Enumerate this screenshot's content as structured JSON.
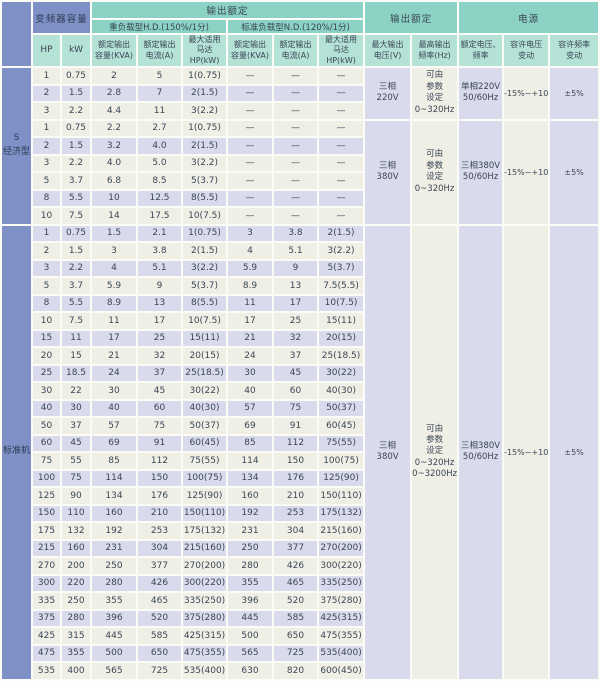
{
  "colors": {
    "teal": "#8BD1C4",
    "mint": "#B5E2D7",
    "blue": "#7E90C5",
    "lavender": "#D9DBEC",
    "cream": "#F0EFE5",
    "text": "#3A4656"
  },
  "header": {
    "inverter_capacity": "变频器容量",
    "output_rating": "输出额定",
    "power": "电源",
    "hd": "重负载型H.D.(150%/1分)",
    "nd": "标准负载型N.D.(120%/1分)",
    "hp": "HP",
    "kw": "kW",
    "kva": "额定输出\n容量(KVA)",
    "amp": "额定输出\n电流(A)",
    "motor": "最大适用\n马达HP(kW)",
    "vmax": "最大输出\n电压(V)",
    "fmax": "最高输出\n频率(Hz)",
    "vf": "额定电压、\n频率",
    "vvar": "容许电压\n变动",
    "fvar": "容许频率\n变动"
  },
  "sections": [
    {
      "id": "economy",
      "label": "S\n经济型",
      "groups": [
        {
          "rows": [
            [
              "1",
              "0.75",
              "2",
              "5",
              "1(0.75)",
              "—",
              "—",
              "—"
            ],
            [
              "2",
              "1.5",
              "2.8",
              "7",
              "2(1.5)",
              "—",
              "—",
              "—"
            ],
            [
              "3",
              "2.2",
              "4.4",
              "11",
              "3(2.2)",
              "—",
              "—",
              "—"
            ]
          ],
          "voltage": "三相\n220V",
          "freq": "可由\n参数\n设定\n0~320Hz",
          "supply": "单相220V\n50/60Hz",
          "volt_var": "-15%~+10%",
          "freq_var": "±5%"
        },
        {
          "rows": [
            [
              "1",
              "0.75",
              "2.2",
              "2.7",
              "1(0.75)",
              "—",
              "—",
              "—"
            ],
            [
              "2",
              "1.5",
              "3.2",
              "4.0",
              "2(1.5)",
              "—",
              "—",
              "—"
            ],
            [
              "3",
              "2.2",
              "4.0",
              "5.0",
              "3(2.2)",
              "—",
              "—",
              "—"
            ],
            [
              "5",
              "3.7",
              "6.8",
              "8.5",
              "5(3.7)",
              "—",
              "—",
              "—"
            ],
            [
              "8",
              "5.5",
              "10",
              "12.5",
              "8(5.5)",
              "—",
              "—",
              "—"
            ],
            [
              "10",
              "7.5",
              "14",
              "17.5",
              "10(7.5)",
              "—",
              "—",
              "—"
            ]
          ],
          "voltage": "三相\n380V",
          "freq": "可由\n参数\n设定\n0~320Hz",
          "supply": "三相380V\n50/60Hz",
          "volt_var": "-15%~+10%",
          "freq_var": "±5%"
        }
      ]
    },
    {
      "id": "standard",
      "label": "标准机",
      "groups": [
        {
          "rows": [
            [
              "1",
              "0.75",
              "1.5",
              "2.1",
              "1(0.75)",
              "3",
              "3.8",
              "2(1.5)"
            ],
            [
              "2",
              "1.5",
              "3",
              "3.8",
              "2(1.5)",
              "4",
              "5.1",
              "3(2.2)"
            ],
            [
              "3",
              "2.2",
              "4",
              "5.1",
              "3(2.2)",
              "5.9",
              "9",
              "5(3.7)"
            ],
            [
              "5",
              "3.7",
              "5.9",
              "9",
              "5(3.7)",
              "8.9",
              "13",
              "7.5(5.5)"
            ],
            [
              "8",
              "5.5",
              "8.9",
              "13",
              "8(5.5)",
              "11",
              "17",
              "10(7.5)"
            ],
            [
              "10",
              "7.5",
              "11",
              "17",
              "10(7.5)",
              "17",
              "25",
              "15(11)"
            ],
            [
              "15",
              "11",
              "17",
              "25",
              "15(11)",
              "21",
              "32",
              "20(15)"
            ],
            [
              "20",
              "15",
              "21",
              "32",
              "20(15)",
              "24",
              "37",
              "25(18.5)"
            ],
            [
              "25",
              "18.5",
              "24",
              "37",
              "25(18.5)",
              "30",
              "45",
              "30(22)"
            ],
            [
              "30",
              "22",
              "30",
              "45",
              "30(22)",
              "40",
              "60",
              "40(30)"
            ],
            [
              "40",
              "30",
              "40",
              "60",
              "40(30)",
              "57",
              "75",
              "50(37)"
            ],
            [
              "50",
              "37",
              "57",
              "75",
              "50(37)",
              "69",
              "91",
              "60(45)"
            ],
            [
              "60",
              "45",
              "69",
              "91",
              "60(45)",
              "85",
              "112",
              "75(55)"
            ],
            [
              "75",
              "55",
              "85",
              "112",
              "75(55)",
              "114",
              "150",
              "100(75)"
            ],
            [
              "100",
              "75",
              "114",
              "150",
              "100(75)",
              "134",
              "176",
              "125(90)"
            ],
            [
              "125",
              "90",
              "134",
              "176",
              "125(90)",
              "160",
              "210",
              "150(110)"
            ],
            [
              "150",
              "110",
              "160",
              "210",
              "150(110)",
              "192",
              "253",
              "175(132)"
            ],
            [
              "175",
              "132",
              "192",
              "253",
              "175(132)",
              "231",
              "304",
              "215(160)"
            ],
            [
              "215",
              "160",
              "231",
              "304",
              "215(160)",
              "250",
              "377",
              "270(200)"
            ],
            [
              "270",
              "200",
              "250",
              "377",
              "270(200)",
              "280",
              "426",
              "300(220)"
            ],
            [
              "300",
              "220",
              "280",
              "426",
              "300(220)",
              "355",
              "465",
              "335(250)"
            ],
            [
              "335",
              "250",
              "355",
              "465",
              "335(250)",
              "396",
              "520",
              "375(280)"
            ],
            [
              "375",
              "280",
              "396",
              "520",
              "375(280)",
              "445",
              "585",
              "425(315)"
            ],
            [
              "425",
              "315",
              "445",
              "585",
              "425(315)",
              "500",
              "650",
              "475(355)"
            ],
            [
              "475",
              "355",
              "500",
              "650",
              "475(355)",
              "565",
              "725",
              "535(400)"
            ],
            [
              "535",
              "400",
              "565",
              "725",
              "535(400)",
              "630",
              "820",
              "600(450)"
            ]
          ],
          "voltage": "三相\n380V",
          "freq": "可由\n参数\n设定\n0~320Hz\n0~3200Hz",
          "supply": "三相380V\n50/60Hz",
          "volt_var": "-15%~+10%",
          "freq_var": "±5%"
        }
      ]
    }
  ]
}
